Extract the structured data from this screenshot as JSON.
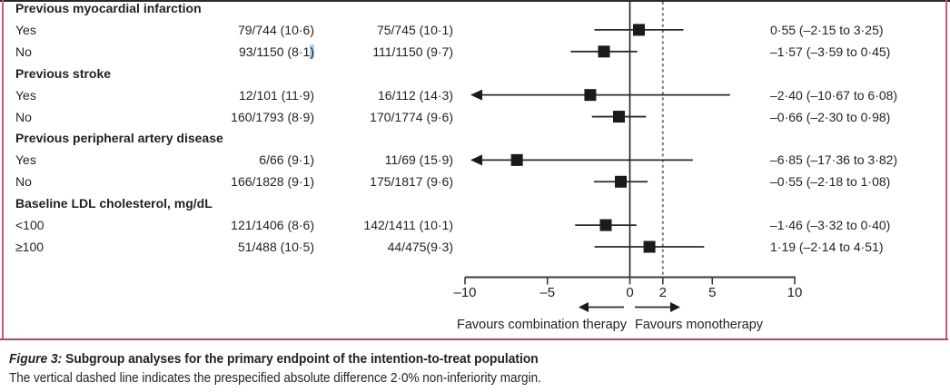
{
  "colors": {
    "text": "#231f20",
    "marker": "#1a1a1a",
    "ci_line": "#2b2b2b",
    "zero_line": "#231f20",
    "dashed_line": "#7a7a7a",
    "axis": "#3c3c3c",
    "frame_pink": "#c75b7e",
    "frame_bottom": "#b5436b",
    "selection_highlight": "#a8d1ee"
  },
  "chart_data": {
    "type": "forest",
    "title": "Subgroup analyses for the primary endpoint of the intention-to-treat population",
    "xlim": [
      -10,
      10
    ],
    "ticks": [
      {
        "value": -10,
        "label": "–10"
      },
      {
        "value": -5,
        "label": "–5"
      },
      {
        "value": 0,
        "label": "0"
      },
      {
        "value": 2,
        "label": "2"
      },
      {
        "value": 5,
        "label": "5"
      },
      {
        "value": 10,
        "label": "10"
      }
    ],
    "zero_line_value": 0,
    "non_inferiority_margin_value": 2,
    "favours_left": "Favours combination therapy",
    "favours_right": "Favours monotherapy",
    "rows": [
      {
        "type": "header",
        "label": "Previous myocardial infarction"
      },
      {
        "type": "data",
        "label": "Yes",
        "combination": "79/744 (10·6)",
        "monotherapy": "75/745 (10·1)",
        "estimate": "0·55 (–2·15 to 3·25)",
        "diff": 0.55,
        "ci_low": -2.15,
        "ci_high": 3.25,
        "arrow_left": false,
        "combination_selected_last_char": false
      },
      {
        "type": "data",
        "label": "No",
        "combination": "93/1150 (8·1)",
        "monotherapy": "111/1150 (9·7)",
        "estimate": "–1·57 (–3·59 to 0·45)",
        "diff": -1.57,
        "ci_low": -3.59,
        "ci_high": 0.45,
        "arrow_left": false,
        "combination_selected_last_char": true
      },
      {
        "type": "header",
        "label": "Previous stroke"
      },
      {
        "type": "data",
        "label": "Yes",
        "combination": "12/101 (11·9)",
        "monotherapy": "16/112 (14·3)",
        "estimate": "–2·40 (–10·67 to 6·08)",
        "diff": -2.4,
        "ci_low": -10.67,
        "ci_high": 6.08,
        "arrow_left": true,
        "combination_selected_last_char": false
      },
      {
        "type": "data",
        "label": "No",
        "combination": "160/1793 (8·9)",
        "monotherapy": "170/1774 (9·6)",
        "estimate": "–0·66 (–2·30 to 0·98)",
        "diff": -0.66,
        "ci_low": -2.3,
        "ci_high": 0.98,
        "arrow_left": false,
        "combination_selected_last_char": false
      },
      {
        "type": "header",
        "label": "Previous peripheral artery disease"
      },
      {
        "type": "data",
        "label": "Yes",
        "combination": "6/66 (9·1)",
        "monotherapy": "11/69 (15·9)",
        "estimate": "–6·85 (–17·36 to 3·82)",
        "diff": -6.85,
        "ci_low": -17.36,
        "ci_high": 3.82,
        "arrow_left": true,
        "combination_selected_last_char": false
      },
      {
        "type": "data",
        "label": "No",
        "combination": "166/1828 (9·1)",
        "monotherapy": "175/1817 (9·6)",
        "estimate": "–0·55 (–2·18 to 1·08)",
        "diff": -0.55,
        "ci_low": -2.18,
        "ci_high": 1.08,
        "arrow_left": false,
        "combination_selected_last_char": false
      },
      {
        "type": "header",
        "label": "Baseline LDL cholesterol, mg/dL"
      },
      {
        "type": "data",
        "label": "<100",
        "combination": "121/1406 (8·6)",
        "monotherapy": "142/1411 (10·1)",
        "estimate": "–1·46 (–3·32 to 0·40)",
        "diff": -1.46,
        "ci_low": -3.32,
        "ci_high": 0.4,
        "arrow_left": false,
        "combination_selected_last_char": false
      },
      {
        "type": "data",
        "label": "≥100",
        "combination": "51/488 (10·5)",
        "monotherapy": "44/475(9·3)",
        "estimate": "1·19 (–2·14 to 4·51)",
        "diff": 1.19,
        "ci_low": -2.14,
        "ci_high": 4.51,
        "arrow_left": false,
        "combination_selected_last_char": false
      }
    ]
  },
  "caption": {
    "figure_label": "Figure 3:",
    "title": "Subgroup analyses for the primary endpoint of the intention-to-treat population",
    "note": "The vertical dashed line indicates the prespecified absolute difference 2·0% non-inferiority margin."
  }
}
